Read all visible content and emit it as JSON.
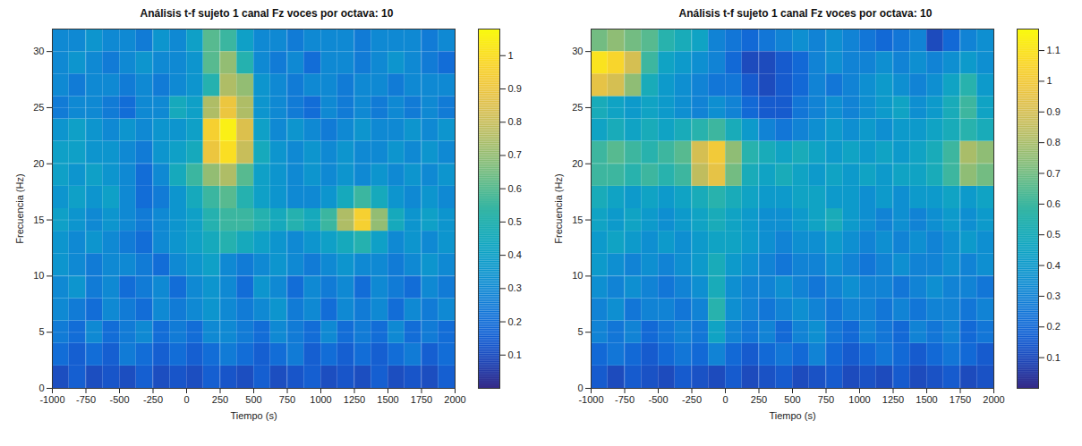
{
  "chart_data": [
    {
      "type": "heatmap",
      "title": "Análisis t-f sujeto 1 canal Fz voces por octava: 10",
      "x_label": "Tiempo (s)",
      "y_label": "Frecuencia (Hz)",
      "xlim": [
        -1000,
        2000
      ],
      "ylim": [
        0,
        32
      ],
      "xticks": [
        -1000,
        -750,
        -500,
        -250,
        0,
        250,
        500,
        750,
        1000,
        1250,
        1500,
        1750,
        2000
      ],
      "yticks": [
        0,
        5,
        10,
        15,
        20,
        25,
        30
      ],
      "grid": true,
      "x_edges": [
        -1000,
        -875,
        -750,
        -625,
        -500,
        -375,
        -250,
        -125,
        0,
        125,
        250,
        375,
        500,
        625,
        750,
        875,
        1000,
        1125,
        1250,
        1375,
        1500,
        1625,
        1750,
        1875,
        2000
      ],
      "y_edges": [
        0,
        2,
        4,
        6,
        8,
        10,
        12,
        14,
        16,
        18,
        20,
        22,
        24,
        26,
        28,
        30,
        32
      ],
      "cells": [
        [
          0.1,
          0.15,
          0.1,
          0.12,
          0.1,
          0.15,
          0.1,
          0.12,
          0.1,
          0.15,
          0.12,
          0.1,
          0.15,
          0.1,
          0.12,
          0.15,
          0.1,
          0.12,
          0.1,
          0.15,
          0.1,
          0.12,
          0.1,
          0.15
        ],
        [
          0.2,
          0.15,
          0.2,
          0.15,
          0.25,
          0.2,
          0.15,
          0.2,
          0.15,
          0.2,
          0.25,
          0.2,
          0.15,
          0.2,
          0.25,
          0.15,
          0.2,
          0.15,
          0.2,
          0.15,
          0.2,
          0.25,
          0.15,
          0.2
        ],
        [
          0.25,
          0.2,
          0.3,
          0.2,
          0.25,
          0.3,
          0.2,
          0.25,
          0.2,
          0.3,
          0.3,
          0.25,
          0.2,
          0.3,
          0.25,
          0.2,
          0.3,
          0.2,
          0.25,
          0.2,
          0.3,
          0.2,
          0.25,
          0.2
        ],
        [
          0.3,
          0.25,
          0.2,
          0.3,
          0.25,
          0.2,
          0.3,
          0.25,
          0.3,
          0.35,
          0.3,
          0.25,
          0.3,
          0.35,
          0.25,
          0.3,
          0.2,
          0.3,
          0.25,
          0.3,
          0.2,
          0.3,
          0.25,
          0.3
        ],
        [
          0.3,
          0.35,
          0.25,
          0.3,
          0.2,
          0.25,
          0.3,
          0.2,
          0.3,
          0.35,
          0.3,
          0.2,
          0.35,
          0.3,
          0.2,
          0.3,
          0.25,
          0.3,
          0.2,
          0.3,
          0.25,
          0.2,
          0.3,
          0.25
        ],
        [
          0.35,
          0.3,
          0.25,
          0.3,
          0.3,
          0.25,
          0.2,
          0.3,
          0.35,
          0.4,
          0.3,
          0.25,
          0.3,
          0.35,
          0.3,
          0.25,
          0.3,
          0.35,
          0.3,
          0.3,
          0.25,
          0.3,
          0.35,
          0.3
        ],
        [
          0.35,
          0.3,
          0.35,
          0.3,
          0.25,
          0.2,
          0.3,
          0.35,
          0.4,
          0.45,
          0.5,
          0.45,
          0.4,
          0.35,
          0.3,
          0.35,
          0.4,
          0.45,
          0.5,
          0.4,
          0.3,
          0.35,
          0.3,
          0.35
        ],
        [
          0.4,
          0.35,
          0.3,
          0.35,
          0.3,
          0.25,
          0.3,
          0.35,
          0.4,
          0.5,
          0.55,
          0.55,
          0.5,
          0.45,
          0.5,
          0.45,
          0.55,
          0.75,
          0.95,
          0.7,
          0.45,
          0.35,
          0.4,
          0.35
        ],
        [
          0.35,
          0.4,
          0.35,
          0.4,
          0.3,
          0.2,
          0.25,
          0.35,
          0.45,
          0.55,
          0.6,
          0.5,
          0.4,
          0.35,
          0.3,
          0.3,
          0.35,
          0.45,
          0.55,
          0.45,
          0.35,
          0.3,
          0.35,
          0.3
        ],
        [
          0.4,
          0.35,
          0.4,
          0.35,
          0.3,
          0.2,
          0.3,
          0.45,
          0.55,
          0.7,
          0.75,
          0.6,
          0.4,
          0.35,
          0.3,
          0.35,
          0.3,
          0.35,
          0.3,
          0.35,
          0.3,
          0.35,
          0.3,
          0.35
        ],
        [
          0.4,
          0.4,
          0.35,
          0.35,
          0.3,
          0.25,
          0.35,
          0.4,
          0.45,
          0.9,
          1.0,
          0.8,
          0.45,
          0.35,
          0.3,
          0.35,
          0.3,
          0.35,
          0.3,
          0.3,
          0.35,
          0.3,
          0.35,
          0.3
        ],
        [
          0.35,
          0.4,
          0.35,
          0.3,
          0.35,
          0.3,
          0.35,
          0.35,
          0.4,
          0.95,
          1.05,
          0.85,
          0.4,
          0.3,
          0.35,
          0.3,
          0.25,
          0.3,
          0.35,
          0.3,
          0.3,
          0.35,
          0.3,
          0.35
        ],
        [
          0.25,
          0.3,
          0.3,
          0.25,
          0.2,
          0.3,
          0.3,
          0.45,
          0.4,
          0.75,
          0.9,
          0.75,
          0.35,
          0.3,
          0.25,
          0.2,
          0.3,
          0.25,
          0.3,
          0.25,
          0.3,
          0.25,
          0.3,
          0.25
        ],
        [
          0.3,
          0.25,
          0.3,
          0.3,
          0.25,
          0.3,
          0.25,
          0.3,
          0.35,
          0.5,
          0.75,
          0.7,
          0.35,
          0.3,
          0.25,
          0.3,
          0.3,
          0.25,
          0.3,
          0.3,
          0.25,
          0.3,
          0.3,
          0.3
        ],
        [
          0.3,
          0.35,
          0.3,
          0.25,
          0.3,
          0.35,
          0.3,
          0.3,
          0.35,
          0.6,
          0.7,
          0.5,
          0.3,
          0.25,
          0.3,
          0.2,
          0.3,
          0.3,
          0.25,
          0.3,
          0.35,
          0.3,
          0.25,
          0.2
        ],
        [
          0.3,
          0.3,
          0.35,
          0.3,
          0.3,
          0.25,
          0.35,
          0.3,
          0.4,
          0.6,
          0.55,
          0.4,
          0.3,
          0.3,
          0.25,
          0.3,
          0.3,
          0.3,
          0.25,
          0.3,
          0.3,
          0.3,
          0.25,
          0.3
        ]
      ],
      "colorbar_range": [
        0,
        1.08
      ],
      "colorbar_ticks": [
        0.1,
        0.2,
        0.3,
        0.4,
        0.5,
        0.6,
        0.7,
        0.8,
        0.9,
        1
      ]
    },
    {
      "type": "heatmap",
      "title": "Análisis t-f sujeto 1 canal Fz voces por octava: 10",
      "x_label": "Tiempo (s)",
      "y_label": "Frecuencia (Hz)",
      "xlim": [
        -1000,
        2000
      ],
      "ylim": [
        0,
        32
      ],
      "xticks": [
        -1000,
        -750,
        -500,
        -250,
        0,
        250,
        500,
        750,
        1000,
        1250,
        1500,
        1750,
        2000
      ],
      "yticks": [
        0,
        5,
        10,
        15,
        20,
        25,
        30
      ],
      "grid": true,
      "x_edges": [
        -1000,
        -875,
        -750,
        -625,
        -500,
        -375,
        -250,
        -125,
        0,
        125,
        250,
        375,
        500,
        625,
        750,
        875,
        1000,
        1125,
        1250,
        1375,
        1500,
        1625,
        1750,
        1875,
        2000
      ],
      "y_edges": [
        0,
        2,
        4,
        6,
        8,
        10,
        12,
        14,
        16,
        18,
        20,
        22,
        24,
        26,
        28,
        30,
        32
      ],
      "cells": [
        [
          0.15,
          0.1,
          0.15,
          0.12,
          0.1,
          0.15,
          0.12,
          0.1,
          0.15,
          0.1,
          0.12,
          0.15,
          0.1,
          0.12,
          0.15,
          0.1,
          0.12,
          0.1,
          0.15,
          0.1,
          0.12,
          0.15,
          0.1,
          0.12
        ],
        [
          0.2,
          0.25,
          0.2,
          0.15,
          0.2,
          0.25,
          0.2,
          0.3,
          0.2,
          0.15,
          0.2,
          0.25,
          0.2,
          0.3,
          0.2,
          0.15,
          0.2,
          0.25,
          0.2,
          0.15,
          0.2,
          0.25,
          0.2,
          0.15
        ],
        [
          0.3,
          0.25,
          0.3,
          0.2,
          0.25,
          0.3,
          0.25,
          0.45,
          0.3,
          0.25,
          0.3,
          0.2,
          0.3,
          0.35,
          0.25,
          0.2,
          0.3,
          0.25,
          0.2,
          0.3,
          0.25,
          0.3,
          0.2,
          0.25
        ],
        [
          0.3,
          0.35,
          0.25,
          0.3,
          0.3,
          0.25,
          0.3,
          0.55,
          0.35,
          0.3,
          0.25,
          0.3,
          0.35,
          0.3,
          0.25,
          0.3,
          0.3,
          0.25,
          0.3,
          0.25,
          0.3,
          0.3,
          0.25,
          0.3
        ],
        [
          0.35,
          0.3,
          0.35,
          0.3,
          0.25,
          0.3,
          0.35,
          0.5,
          0.35,
          0.3,
          0.3,
          0.35,
          0.3,
          0.25,
          0.3,
          0.35,
          0.3,
          0.3,
          0.25,
          0.3,
          0.35,
          0.3,
          0.3,
          0.25
        ],
        [
          0.4,
          0.35,
          0.3,
          0.35,
          0.3,
          0.35,
          0.4,
          0.5,
          0.4,
          0.35,
          0.3,
          0.25,
          0.3,
          0.3,
          0.35,
          0.3,
          0.25,
          0.3,
          0.35,
          0.3,
          0.3,
          0.35,
          0.3,
          0.35
        ],
        [
          0.4,
          0.45,
          0.4,
          0.35,
          0.4,
          0.35,
          0.4,
          0.45,
          0.45,
          0.4,
          0.35,
          0.3,
          0.35,
          0.35,
          0.4,
          0.35,
          0.3,
          0.35,
          0.3,
          0.35,
          0.3,
          0.35,
          0.4,
          0.35
        ],
        [
          0.45,
          0.4,
          0.45,
          0.4,
          0.35,
          0.4,
          0.45,
          0.5,
          0.45,
          0.4,
          0.35,
          0.35,
          0.4,
          0.45,
          0.5,
          0.4,
          0.35,
          0.3,
          0.35,
          0.3,
          0.35,
          0.4,
          0.35,
          0.4
        ],
        [
          0.5,
          0.45,
          0.4,
          0.45,
          0.4,
          0.45,
          0.5,
          0.55,
          0.5,
          0.45,
          0.4,
          0.4,
          0.45,
          0.45,
          0.4,
          0.4,
          0.35,
          0.4,
          0.35,
          0.4,
          0.4,
          0.45,
          0.4,
          0.45
        ],
        [
          0.6,
          0.6,
          0.55,
          0.6,
          0.55,
          0.6,
          0.85,
          0.95,
          0.7,
          0.5,
          0.45,
          0.5,
          0.45,
          0.4,
          0.45,
          0.4,
          0.45,
          0.4,
          0.45,
          0.45,
          0.5,
          0.6,
          0.75,
          0.7
        ],
        [
          0.6,
          0.65,
          0.6,
          0.55,
          0.6,
          0.65,
          0.9,
          1.0,
          0.75,
          0.55,
          0.5,
          0.45,
          0.5,
          0.45,
          0.4,
          0.45,
          0.4,
          0.45,
          0.4,
          0.45,
          0.5,
          0.6,
          0.8,
          0.75
        ],
        [
          0.45,
          0.5,
          0.45,
          0.5,
          0.45,
          0.5,
          0.55,
          0.6,
          0.5,
          0.4,
          0.3,
          0.25,
          0.3,
          0.35,
          0.4,
          0.35,
          0.4,
          0.35,
          0.4,
          0.4,
          0.45,
          0.5,
          0.55,
          0.5
        ],
        [
          0.5,
          0.45,
          0.4,
          0.45,
          0.4,
          0.35,
          0.3,
          0.35,
          0.3,
          0.2,
          0.15,
          0.15,
          0.25,
          0.3,
          0.35,
          0.3,
          0.35,
          0.4,
          0.45,
          0.35,
          0.4,
          0.5,
          0.6,
          0.45
        ],
        [
          0.95,
          0.9,
          0.75,
          0.5,
          0.4,
          0.35,
          0.3,
          0.25,
          0.25,
          0.15,
          0.1,
          0.15,
          0.2,
          0.3,
          0.25,
          0.3,
          0.35,
          0.4,
          0.35,
          0.3,
          0.35,
          0.45,
          0.55,
          0.4
        ],
        [
          1.1,
          1.05,
          0.9,
          0.6,
          0.45,
          0.4,
          0.35,
          0.3,
          0.2,
          0.1,
          0.1,
          0.15,
          0.2,
          0.3,
          0.35,
          0.3,
          0.3,
          0.35,
          0.3,
          0.35,
          0.3,
          0.35,
          0.4,
          0.35
        ],
        [
          0.7,
          0.75,
          0.7,
          0.65,
          0.55,
          0.5,
          0.45,
          0.3,
          0.25,
          0.2,
          0.25,
          0.3,
          0.35,
          0.3,
          0.35,
          0.3,
          0.25,
          0.2,
          0.25,
          0.3,
          0.1,
          0.2,
          0.3,
          0.35
        ]
      ],
      "colorbar_range": [
        0,
        1.17
      ],
      "colorbar_ticks": [
        0.1,
        0.2,
        0.3,
        0.4,
        0.5,
        0.6,
        0.7,
        0.8,
        0.9,
        1,
        1.1
      ]
    }
  ]
}
